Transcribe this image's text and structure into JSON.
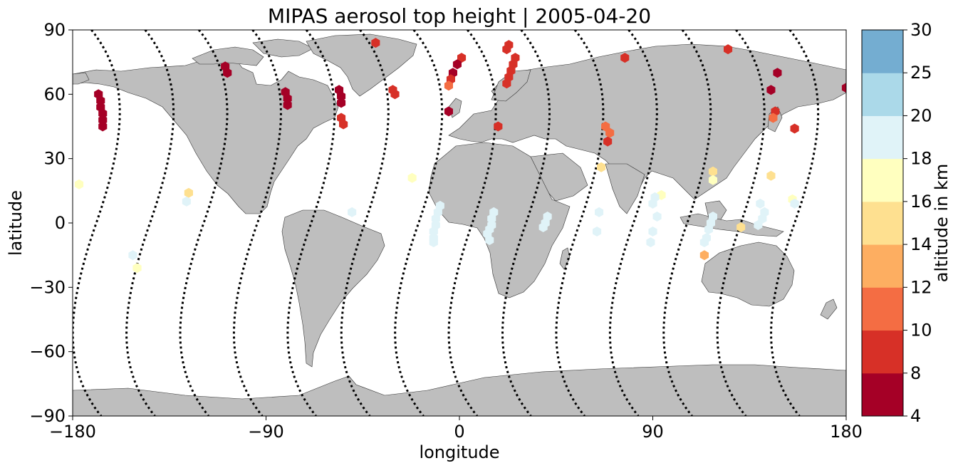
{
  "chart_data": {
    "type": "scatter",
    "title": "MIPAS aerosol top height | 2005-04-20",
    "xlabel": "longitude",
    "ylabel": "latitude",
    "xlim": [
      -180,
      180
    ],
    "ylim": [
      -90,
      90
    ],
    "xticks": [
      -180,
      -90,
      0,
      90,
      180
    ],
    "xtick_labels": [
      "−180",
      "−90",
      "0",
      "90",
      "180"
    ],
    "yticks": [
      -90,
      -60,
      -30,
      0,
      30,
      60,
      90
    ],
    "ytick_labels": [
      "−90",
      "−60",
      "−30",
      "0",
      "30",
      "60",
      "90"
    ],
    "grid": false,
    "colorbar": {
      "label": "altitude in km",
      "boundaries": [
        4,
        8,
        10,
        12,
        14,
        16,
        18,
        20,
        25,
        30
      ],
      "tick_labels": [
        "4",
        "8",
        "10",
        "12",
        "14",
        "16",
        "18",
        "20",
        "25",
        "30"
      ],
      "colors": [
        "#a50026",
        "#d73027",
        "#f46d43",
        "#fdae61",
        "#fee090",
        "#ffffbf",
        "#e0f3f8",
        "#abd9e9",
        "#74add1",
        "#313695"
      ]
    },
    "land_color": "#bebebe",
    "track_color": "#000000",
    "aerosol_points": [
      {
        "lon": -168,
        "lat": 60,
        "alt": 6
      },
      {
        "lon": -167,
        "lat": 57,
        "alt": 6
      },
      {
        "lon": -167,
        "lat": 54,
        "alt": 6
      },
      {
        "lon": -166,
        "lat": 51,
        "alt": 6
      },
      {
        "lon": -166,
        "lat": 48,
        "alt": 6
      },
      {
        "lon": -166,
        "lat": 45,
        "alt": 6
      },
      {
        "lon": -109,
        "lat": 73,
        "alt": 6
      },
      {
        "lon": -108,
        "lat": 70,
        "alt": 6
      },
      {
        "lon": -81,
        "lat": 61,
        "alt": 6
      },
      {
        "lon": -80,
        "lat": 58,
        "alt": 6
      },
      {
        "lon": -80,
        "lat": 55,
        "alt": 6
      },
      {
        "lon": -56,
        "lat": 62,
        "alt": 6
      },
      {
        "lon": -55,
        "lat": 59,
        "alt": 6
      },
      {
        "lon": -55,
        "lat": 56,
        "alt": 6
      },
      {
        "lon": -55,
        "lat": 49,
        "alt": 9
      },
      {
        "lon": -54,
        "lat": 46,
        "alt": 9
      },
      {
        "lon": -39,
        "lat": 84,
        "alt": 9
      },
      {
        "lon": -31,
        "lat": 62,
        "alt": 9
      },
      {
        "lon": -30,
        "lat": 60,
        "alt": 9
      },
      {
        "lon": 1,
        "lat": 77,
        "alt": 9
      },
      {
        "lon": -1,
        "lat": 74,
        "alt": 6
      },
      {
        "lon": -3,
        "lat": 70,
        "alt": 6
      },
      {
        "lon": -4,
        "lat": 67,
        "alt": 9
      },
      {
        "lon": -5,
        "lat": 64,
        "alt": 11
      },
      {
        "lon": -5,
        "lat": 52,
        "alt": 6
      },
      {
        "lon": 23,
        "lat": 83,
        "alt": 9
      },
      {
        "lon": 22,
        "lat": 81,
        "alt": 9
      },
      {
        "lon": 26,
        "lat": 77,
        "alt": 9
      },
      {
        "lon": 25,
        "lat": 74,
        "alt": 9
      },
      {
        "lon": 24,
        "lat": 71,
        "alt": 9
      },
      {
        "lon": 23,
        "lat": 68,
        "alt": 9
      },
      {
        "lon": 22,
        "lat": 65,
        "alt": 9
      },
      {
        "lon": 18,
        "lat": 45,
        "alt": 9
      },
      {
        "lon": 77,
        "lat": 77,
        "alt": 9
      },
      {
        "lon": 68,
        "lat": 45,
        "alt": 11
      },
      {
        "lon": 70,
        "lat": 42,
        "alt": 11
      },
      {
        "lon": 69,
        "lat": 38,
        "alt": 9
      },
      {
        "lon": 125,
        "lat": 81,
        "alt": 9
      },
      {
        "lon": 148,
        "lat": 70,
        "alt": 6
      },
      {
        "lon": 145,
        "lat": 62,
        "alt": 6
      },
      {
        "lon": 147,
        "lat": 52,
        "alt": 9
      },
      {
        "lon": 146,
        "lat": 49,
        "alt": 11
      },
      {
        "lon": 156,
        "lat": 44,
        "alt": 9
      },
      {
        "lon": 180,
        "lat": 63,
        "alt": 6
      },
      {
        "lon": 66,
        "lat": 26,
        "alt": 15
      },
      {
        "lon": 118,
        "lat": 24,
        "alt": 15
      },
      {
        "lon": 145,
        "lat": 22,
        "alt": 15
      },
      {
        "lon": -126,
        "lat": 14,
        "alt": 15
      },
      {
        "lon": 131,
        "lat": -2,
        "alt": 15
      },
      {
        "lon": 114,
        "lat": -15,
        "alt": 13
      },
      {
        "lon": -177,
        "lat": 18,
        "alt": 17
      },
      {
        "lon": -22,
        "lat": 21,
        "alt": 17
      },
      {
        "lon": 118,
        "lat": 20,
        "alt": 17
      },
      {
        "lon": 94,
        "lat": 13,
        "alt": 17
      },
      {
        "lon": 155,
        "lat": 11,
        "alt": 17
      },
      {
        "lon": -150,
        "lat": -21,
        "alt": 17
      },
      {
        "lon": -127,
        "lat": 10,
        "alt": 19
      },
      {
        "lon": -50,
        "lat": 5,
        "alt": 19
      },
      {
        "lon": -152,
        "lat": -15,
        "alt": 19
      },
      {
        "lon": -9,
        "lat": 8,
        "alt": 19
      },
      {
        "lon": -10,
        "lat": 5,
        "alt": 19
      },
      {
        "lon": -11,
        "lat": 2,
        "alt": 19
      },
      {
        "lon": -11,
        "lat": -1,
        "alt": 19
      },
      {
        "lon": -12,
        "lat": -4,
        "alt": 19
      },
      {
        "lon": -12,
        "lat": -7,
        "alt": 19
      },
      {
        "lon": -12,
        "lat": -9,
        "alt": 19
      },
      {
        "lon": 16,
        "lat": 5,
        "alt": 19
      },
      {
        "lon": 15,
        "lat": 2,
        "alt": 19
      },
      {
        "lon": 15,
        "lat": -1,
        "alt": 19
      },
      {
        "lon": 14,
        "lat": -3,
        "alt": 19
      },
      {
        "lon": 13,
        "lat": -5,
        "alt": 19
      },
      {
        "lon": 14,
        "lat": -8,
        "alt": 19
      },
      {
        "lon": 41,
        "lat": 3,
        "alt": 19
      },
      {
        "lon": 40,
        "lat": 0,
        "alt": 19
      },
      {
        "lon": 39,
        "lat": -2,
        "alt": 19
      },
      {
        "lon": 65,
        "lat": 5,
        "alt": 19
      },
      {
        "lon": 64,
        "lat": -4,
        "alt": 19
      },
      {
        "lon": 91,
        "lat": 12,
        "alt": 19
      },
      {
        "lon": 90,
        "lat": 9,
        "alt": 19
      },
      {
        "lon": 92,
        "lat": 3,
        "alt": 19
      },
      {
        "lon": 90,
        "lat": -4,
        "alt": 19
      },
      {
        "lon": 89,
        "lat": -9,
        "alt": 19
      },
      {
        "lon": 118,
        "lat": 3,
        "alt": 19
      },
      {
        "lon": 117,
        "lat": 0,
        "alt": 19
      },
      {
        "lon": 116,
        "lat": -3,
        "alt": 19
      },
      {
        "lon": 115,
        "lat": -7,
        "alt": 19
      },
      {
        "lon": 114,
        "lat": -9,
        "alt": 19
      },
      {
        "lon": 140,
        "lat": 9,
        "alt": 19
      },
      {
        "lon": 142,
        "lat": 5,
        "alt": 19
      },
      {
        "lon": 141,
        "lat": 2,
        "alt": 19
      },
      {
        "lon": 139,
        "lat": -1,
        "alt": 19
      },
      {
        "lon": 156,
        "lat": 9,
        "alt": 19
      }
    ],
    "orbit_tracks": [
      {
        "lat_start": 90,
        "lat_end": -90,
        "lon_at_equator": -119,
        "direction": "descending"
      },
      {
        "lat_start": 90,
        "lat_end": -90,
        "lon_at_equator": -94,
        "direction": "descending"
      },
      {
        "lat_start": 90,
        "lat_end": -90,
        "lon_at_equator": -69,
        "direction": "descending"
      },
      {
        "lat_start": 90,
        "lat_end": -90,
        "lon_at_equator": -44,
        "direction": "descending"
      },
      {
        "lat_start": 90,
        "lat_end": -90,
        "lon_at_equator": -19,
        "direction": "descending"
      },
      {
        "lat_start": 90,
        "lat_end": -90,
        "lon_at_equator": 6,
        "direction": "descending"
      },
      {
        "lat_start": 90,
        "lat_end": -90,
        "lon_at_equator": 31,
        "direction": "descending"
      },
      {
        "lat_start": 90,
        "lat_end": -90,
        "lon_at_equator": 56,
        "direction": "descending"
      },
      {
        "lat_start": 90,
        "lat_end": -90,
        "lon_at_equator": 81,
        "direction": "descending"
      },
      {
        "lat_start": 90,
        "lat_end": -90,
        "lon_at_equator": 106,
        "direction": "descending"
      },
      {
        "lat_start": 90,
        "lat_end": -90,
        "lon_at_equator": 131,
        "direction": "descending"
      },
      {
        "lat_start": 90,
        "lat_end": -90,
        "lon_at_equator": 156,
        "direction": "descending"
      },
      {
        "lat_start": 90,
        "lat_end": -90,
        "lon_at_equator": -169,
        "direction": "descending"
      },
      {
        "lat_start": 90,
        "lat_end": -90,
        "lon_at_equator": -144,
        "direction": "descending"
      }
    ]
  }
}
